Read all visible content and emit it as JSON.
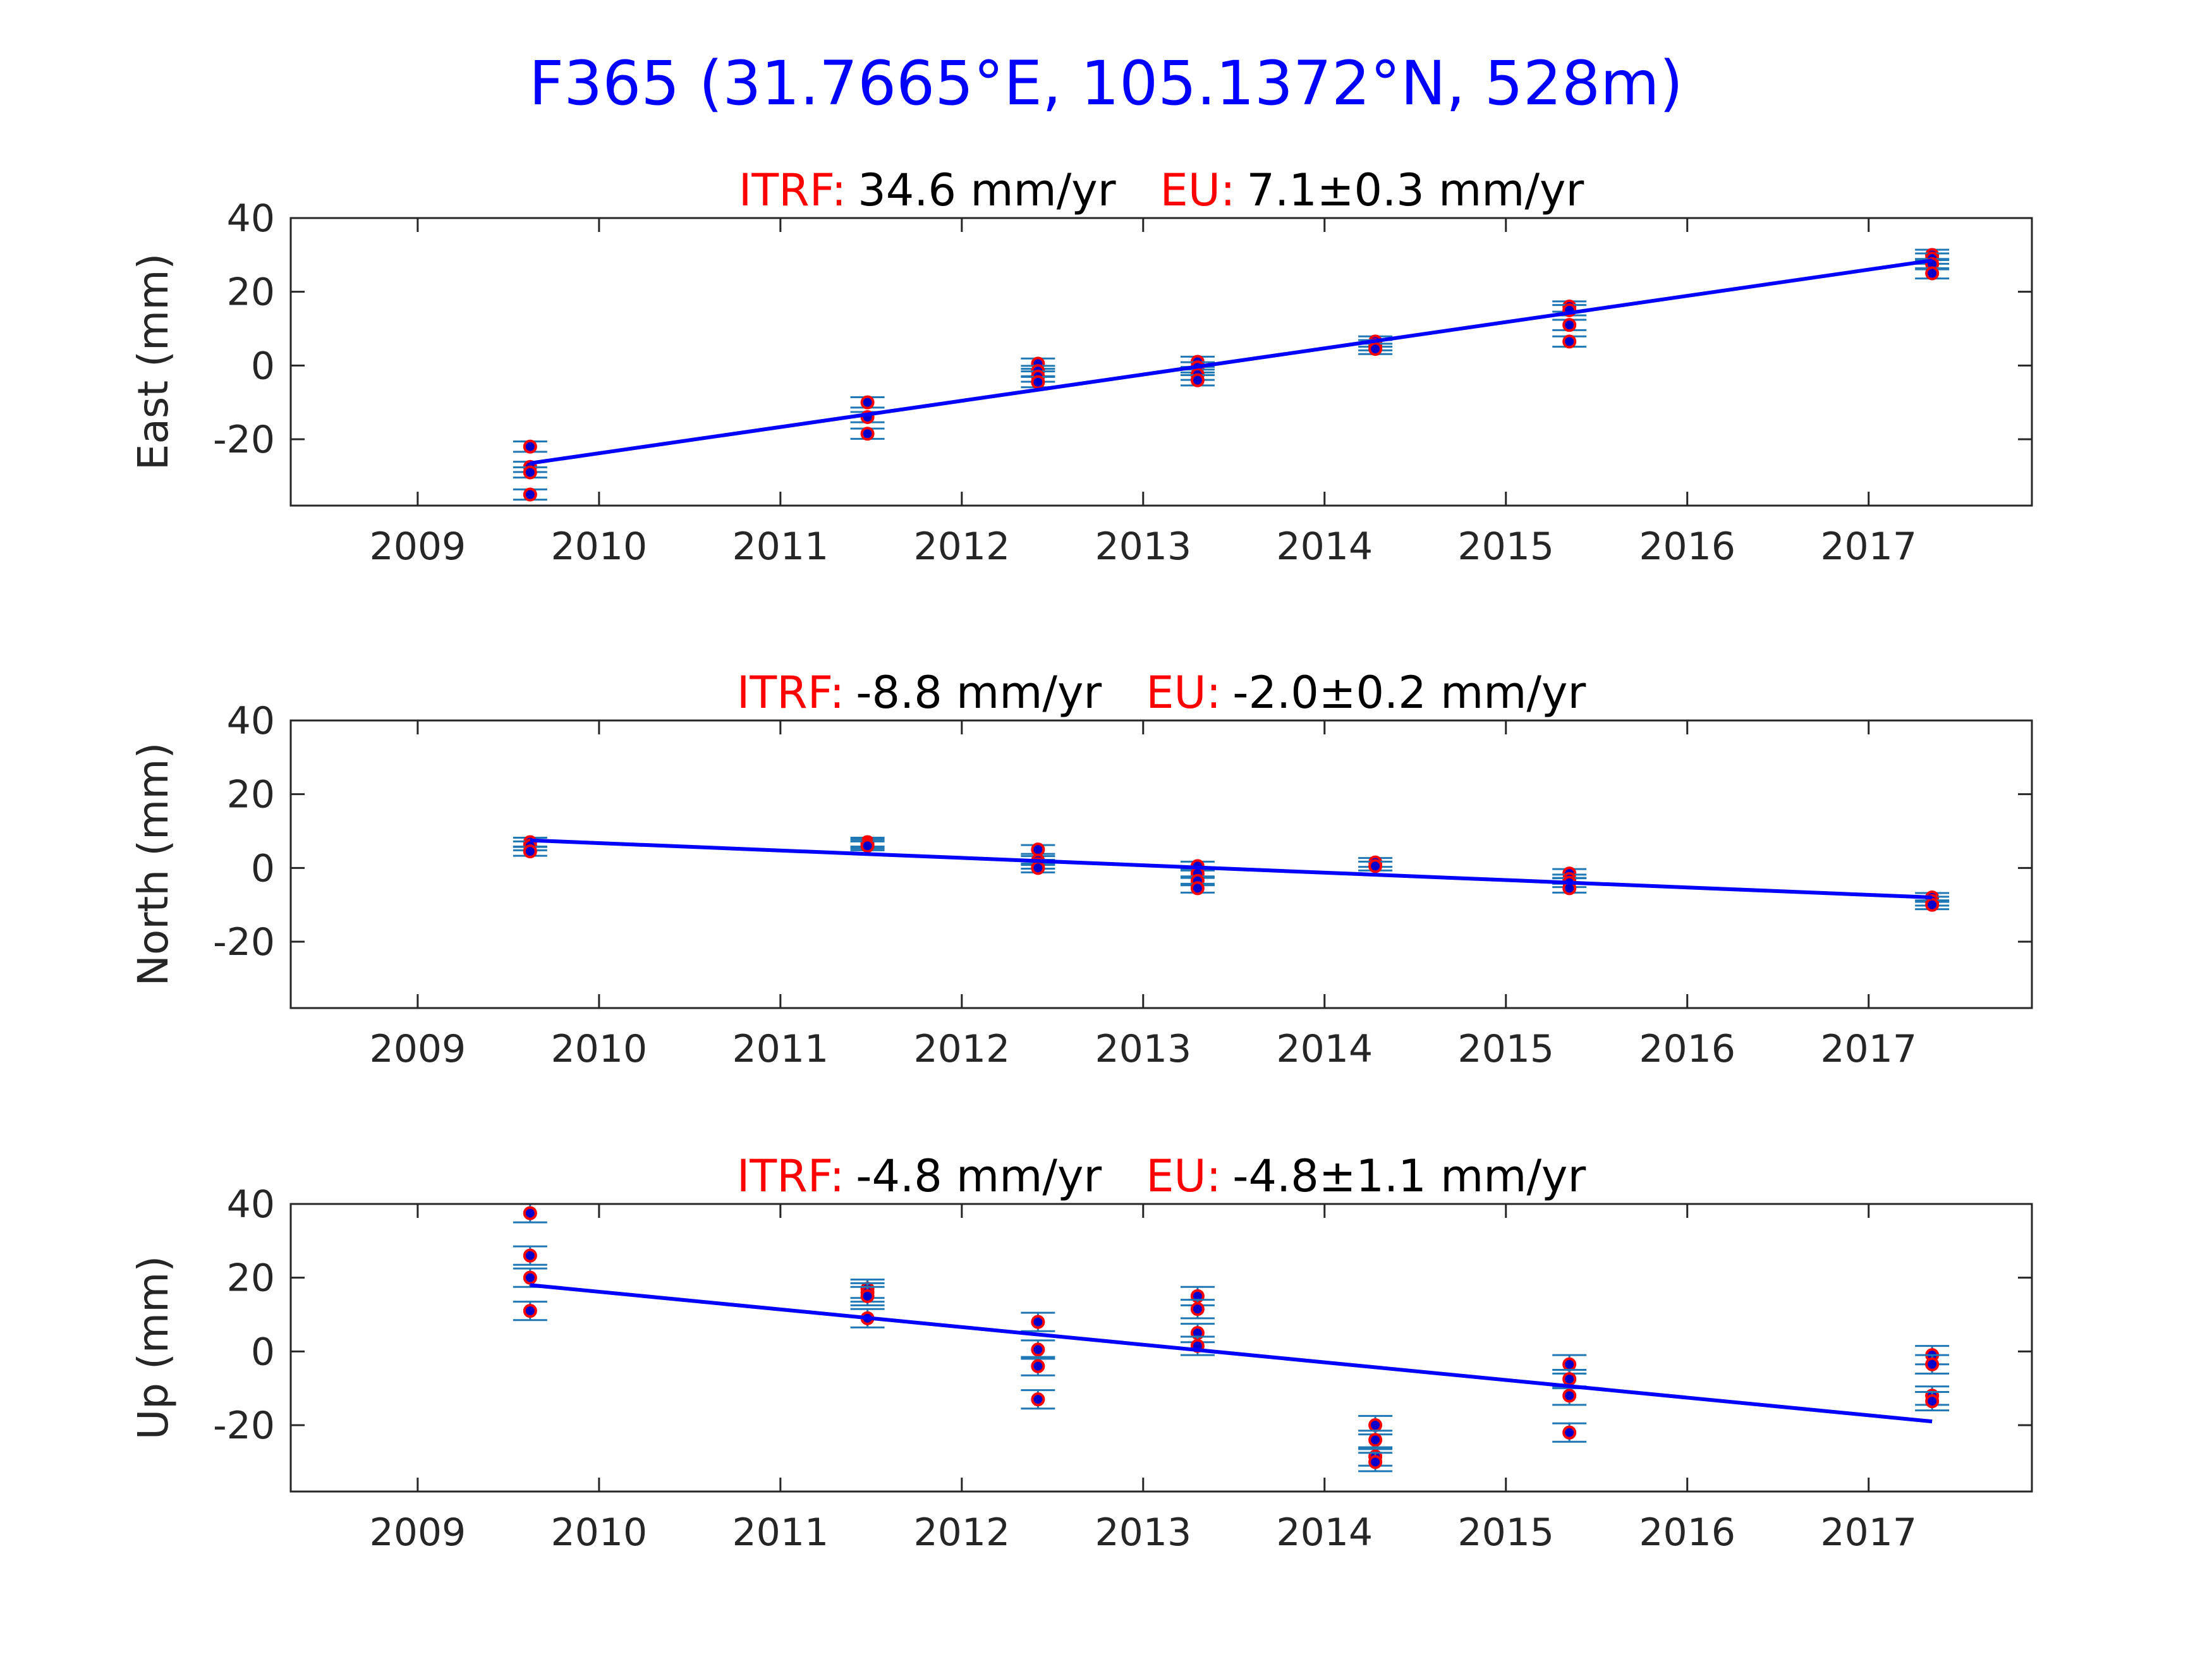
{
  "figure": {
    "title": "F365 (31.7665°E, 105.1372°N, 528m)",
    "title_color": "#0000ff"
  },
  "colors": {
    "fit_line": "#0000ff",
    "errorbar": "#1f77b4",
    "marker_fill": "#0000cc",
    "marker_edge": "#ff0000",
    "label_key": "#ff0000"
  },
  "chart_data": [
    {
      "type": "scatter",
      "component": "east",
      "ylabel": "East (mm)",
      "title_parts": {
        "itrf_label": "ITRF:",
        "itrf_value": "34.6 mm/yr",
        "eu_label": "EU:",
        "eu_value": "7.1±0.3 mm/yr"
      },
      "xlim": [
        2008.3,
        2017.9
      ],
      "ylim": [
        -38,
        40
      ],
      "xticks": [
        2009,
        2010,
        2011,
        2012,
        2013,
        2014,
        2015,
        2016,
        2017
      ],
      "yticks": [
        -20,
        0,
        20,
        40
      ],
      "grid": false,
      "fit": {
        "x": [
          2009.62,
          2017.35
        ],
        "y": [
          -26.5,
          28.5
        ]
      },
      "points": [
        {
          "x": 2009.62,
          "y": -22,
          "err": 1.4
        },
        {
          "x": 2009.62,
          "y": -27.5,
          "err": 1.4
        },
        {
          "x": 2009.62,
          "y": -29,
          "err": 1.4
        },
        {
          "x": 2009.62,
          "y": -35,
          "err": 1.4
        },
        {
          "x": 2011.48,
          "y": -10,
          "err": 1.4
        },
        {
          "x": 2011.48,
          "y": -14,
          "err": 1.4
        },
        {
          "x": 2011.48,
          "y": -18.5,
          "err": 1.4
        },
        {
          "x": 2012.42,
          "y": 0.5,
          "err": 1.4
        },
        {
          "x": 2012.42,
          "y": -1.5,
          "err": 1.4
        },
        {
          "x": 2012.42,
          "y": -3,
          "err": 1.4
        },
        {
          "x": 2012.42,
          "y": -4.5,
          "err": 1.4
        },
        {
          "x": 2013.3,
          "y": 1,
          "err": 1.4
        },
        {
          "x": 2013.3,
          "y": -0.5,
          "err": 1.4
        },
        {
          "x": 2013.3,
          "y": -2.5,
          "err": 1.4
        },
        {
          "x": 2013.3,
          "y": -4,
          "err": 1.4
        },
        {
          "x": 2014.28,
          "y": 6.5,
          "err": 1.4
        },
        {
          "x": 2014.28,
          "y": 5.5,
          "err": 1.4
        },
        {
          "x": 2014.28,
          "y": 4.5,
          "err": 1.4
        },
        {
          "x": 2015.35,
          "y": 16,
          "err": 1.4
        },
        {
          "x": 2015.35,
          "y": 15,
          "err": 1.4
        },
        {
          "x": 2015.35,
          "y": 11,
          "err": 1.4
        },
        {
          "x": 2015.35,
          "y": 6.5,
          "err": 1.4
        },
        {
          "x": 2017.35,
          "y": 30,
          "err": 1.4
        },
        {
          "x": 2017.35,
          "y": 29,
          "err": 1.4
        },
        {
          "x": 2017.35,
          "y": 27.5,
          "err": 1.4
        },
        {
          "x": 2017.35,
          "y": 25,
          "err": 1.4
        }
      ]
    },
    {
      "type": "scatter",
      "component": "north",
      "ylabel": "North (mm)",
      "title_parts": {
        "itrf_label": "ITRF:",
        "itrf_value": "-8.8 mm/yr",
        "eu_label": "EU:",
        "eu_value": "-2.0±0.2 mm/yr"
      },
      "xlim": [
        2008.3,
        2017.9
      ],
      "ylim": [
        -38,
        40
      ],
      "xticks": [
        2009,
        2010,
        2011,
        2012,
        2013,
        2014,
        2015,
        2016,
        2017
      ],
      "yticks": [
        -20,
        0,
        20,
        40
      ],
      "grid": false,
      "fit": {
        "x": [
          2009.62,
          2017.35
        ],
        "y": [
          7.5,
          -8
        ]
      },
      "points": [
        {
          "x": 2009.62,
          "y": 7,
          "err": 1.2
        },
        {
          "x": 2009.62,
          "y": 6,
          "err": 1.2
        },
        {
          "x": 2009.62,
          "y": 4.5,
          "err": 1.2
        },
        {
          "x": 2011.48,
          "y": 7,
          "err": 1.2
        },
        {
          "x": 2011.48,
          "y": 6.5,
          "err": 1.2
        },
        {
          "x": 2011.48,
          "y": 6,
          "err": 1.2
        },
        {
          "x": 2012.42,
          "y": 5,
          "err": 1.2
        },
        {
          "x": 2012.42,
          "y": 2,
          "err": 1.2
        },
        {
          "x": 2012.42,
          "y": 1,
          "err": 1.2
        },
        {
          "x": 2012.42,
          "y": 0,
          "err": 1.2
        },
        {
          "x": 2013.3,
          "y": 0.5,
          "err": 1.2
        },
        {
          "x": 2013.3,
          "y": -1.5,
          "err": 1.2
        },
        {
          "x": 2013.3,
          "y": -3.5,
          "err": 1.2
        },
        {
          "x": 2013.3,
          "y": -5.5,
          "err": 1.2
        },
        {
          "x": 2014.28,
          "y": 1.5,
          "err": 1.2
        },
        {
          "x": 2014.28,
          "y": 0.5,
          "err": 1.2
        },
        {
          "x": 2015.35,
          "y": -1.5,
          "err": 1.2
        },
        {
          "x": 2015.35,
          "y": -3,
          "err": 1.2
        },
        {
          "x": 2015.35,
          "y": -4,
          "err": 1.2
        },
        {
          "x": 2015.35,
          "y": -5.5,
          "err": 1.2
        },
        {
          "x": 2017.35,
          "y": -8,
          "err": 1.2
        },
        {
          "x": 2017.35,
          "y": -9,
          "err": 1.2
        },
        {
          "x": 2017.35,
          "y": -10,
          "err": 1.2
        }
      ]
    },
    {
      "type": "scatter",
      "component": "up",
      "ylabel": "Up (mm)",
      "title_parts": {
        "itrf_label": "ITRF:",
        "itrf_value": "-4.8 mm/yr",
        "eu_label": "EU:",
        "eu_value": "-4.8±1.1 mm/yr"
      },
      "xlim": [
        2008.3,
        2017.9
      ],
      "ylim": [
        -38,
        40
      ],
      "xticks": [
        2009,
        2010,
        2011,
        2012,
        2013,
        2014,
        2015,
        2016,
        2017
      ],
      "yticks": [
        -20,
        0,
        20,
        40
      ],
      "grid": false,
      "fit": {
        "x": [
          2009.62,
          2017.35
        ],
        "y": [
          18,
          -19
        ]
      },
      "points": [
        {
          "x": 2009.62,
          "y": 37.5,
          "err": 2.5
        },
        {
          "x": 2009.62,
          "y": 26,
          "err": 2.5
        },
        {
          "x": 2009.62,
          "y": 20,
          "err": 2.5
        },
        {
          "x": 2009.62,
          "y": 11,
          "err": 2.5
        },
        {
          "x": 2011.48,
          "y": 17,
          "err": 2.5
        },
        {
          "x": 2011.48,
          "y": 16,
          "err": 2.5
        },
        {
          "x": 2011.48,
          "y": 15,
          "err": 2.5
        },
        {
          "x": 2011.48,
          "y": 9,
          "err": 2.5
        },
        {
          "x": 2012.42,
          "y": 8,
          "err": 2.5
        },
        {
          "x": 2012.42,
          "y": 0.5,
          "err": 2.5
        },
        {
          "x": 2012.42,
          "y": -4,
          "err": 2.5
        },
        {
          "x": 2012.42,
          "y": -13,
          "err": 2.5
        },
        {
          "x": 2013.3,
          "y": 15,
          "err": 2.5
        },
        {
          "x": 2013.3,
          "y": 11.5,
          "err": 2.5
        },
        {
          "x": 2013.3,
          "y": 5,
          "err": 2.5
        },
        {
          "x": 2013.3,
          "y": 1.5,
          "err": 2.5
        },
        {
          "x": 2014.28,
          "y": -20,
          "err": 2.5
        },
        {
          "x": 2014.28,
          "y": -24,
          "err": 2.5
        },
        {
          "x": 2014.28,
          "y": -28.5,
          "err": 2.5
        },
        {
          "x": 2014.28,
          "y": -30,
          "err": 2.5
        },
        {
          "x": 2015.35,
          "y": -3.5,
          "err": 2.5
        },
        {
          "x": 2015.35,
          "y": -7.5,
          "err": 2.5
        },
        {
          "x": 2015.35,
          "y": -12,
          "err": 2.5
        },
        {
          "x": 2015.35,
          "y": -22,
          "err": 2.5
        },
        {
          "x": 2017.35,
          "y": -1,
          "err": 2.5
        },
        {
          "x": 2017.35,
          "y": -3.5,
          "err": 2.5
        },
        {
          "x": 2017.35,
          "y": -12,
          "err": 2.5
        },
        {
          "x": 2017.35,
          "y": -13.5,
          "err": 2.5
        }
      ]
    }
  ]
}
